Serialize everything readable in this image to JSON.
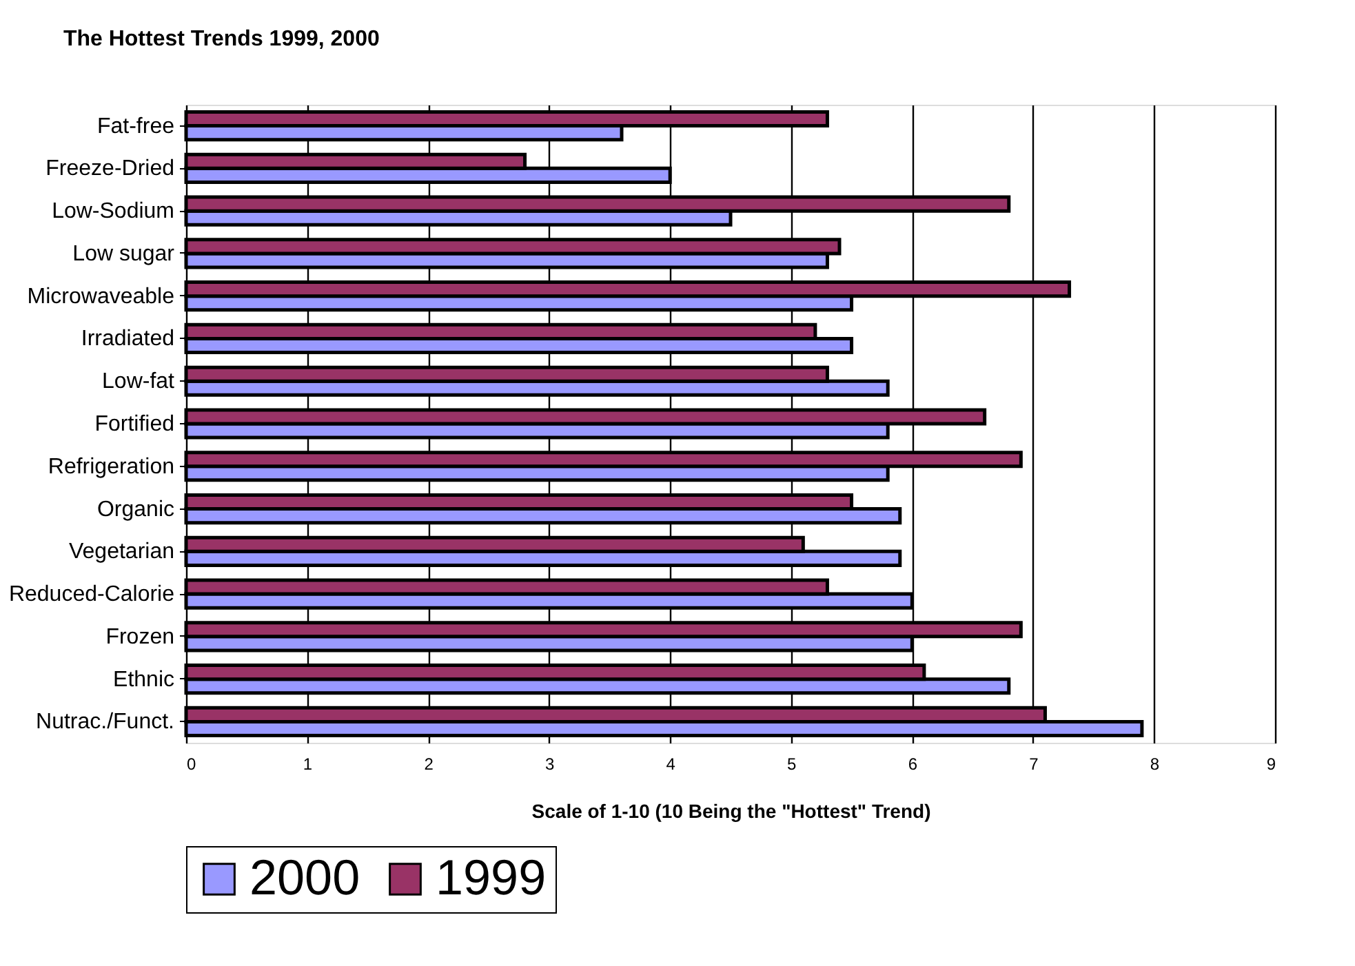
{
  "chart_data": {
    "type": "bar",
    "orientation": "horizontal",
    "title": "The Hottest Trends 1999, 2000",
    "xlabel": "Scale of 1-10 (10 Being the \"Hottest\" Trend)",
    "categories": [
      "Fat-free",
      "Freeze-Dried",
      "Low-Sodium",
      "Low sugar",
      "Microwaveable",
      "Irradiated",
      "Low-fat",
      "Fortified",
      "Refrigeration",
      "Organic",
      "Vegetarian",
      "Reduced-Calorie",
      "Frozen",
      "Ethnic",
      "Nutrac./Funct."
    ],
    "series": [
      {
        "name": "2000",
        "color": "#9999ff",
        "values": [
          3.6,
          4.0,
          4.5,
          5.3,
          5.5,
          5.5,
          5.8,
          5.8,
          5.8,
          5.9,
          5.9,
          6.0,
          6.0,
          6.8,
          7.9
        ]
      },
      {
        "name": "1999",
        "color": "#993366",
        "values": [
          5.3,
          2.8,
          6.8,
          5.4,
          7.3,
          5.2,
          5.3,
          6.6,
          6.9,
          5.5,
          5.1,
          5.3,
          6.9,
          6.1,
          7.1
        ]
      }
    ],
    "xlim": [
      0,
      9
    ],
    "xticks": [
      0,
      1,
      2,
      3,
      4,
      5,
      6,
      7,
      8,
      9
    ],
    "grid": "x",
    "legend": "bottom"
  }
}
